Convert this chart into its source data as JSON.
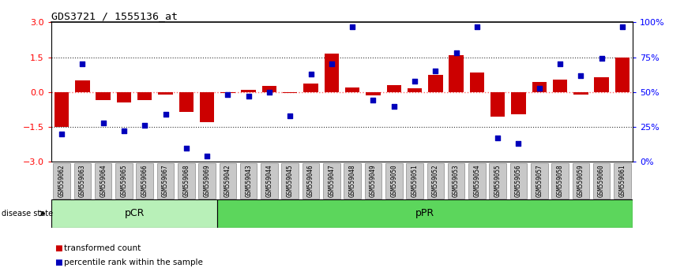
{
  "title": "GDS3721 / 1555136_at",
  "samples": [
    "GSM559062",
    "GSM559063",
    "GSM559064",
    "GSM559065",
    "GSM559066",
    "GSM559067",
    "GSM559068",
    "GSM559069",
    "GSM559042",
    "GSM559043",
    "GSM559044",
    "GSM559045",
    "GSM559046",
    "GSM559047",
    "GSM559048",
    "GSM559049",
    "GSM559050",
    "GSM559051",
    "GSM559052",
    "GSM559053",
    "GSM559054",
    "GSM559055",
    "GSM559056",
    "GSM559057",
    "GSM559058",
    "GSM559059",
    "GSM559060",
    "GSM559061"
  ],
  "transformed_count": [
    -1.5,
    0.5,
    -0.35,
    -0.45,
    -0.35,
    -0.1,
    -0.85,
    -1.3,
    -0.05,
    0.1,
    0.25,
    -0.05,
    0.35,
    1.65,
    0.2,
    -0.15,
    0.3,
    0.15,
    0.75,
    1.6,
    0.85,
    -1.05,
    -0.95,
    0.45,
    0.55,
    -0.1,
    0.65,
    1.5
  ],
  "percentile_rank": [
    20,
    70,
    28,
    22,
    26,
    34,
    10,
    4,
    48,
    47,
    50,
    33,
    63,
    70,
    97,
    44,
    40,
    58,
    65,
    78,
    97,
    17,
    13,
    53,
    70,
    62,
    74,
    97
  ],
  "groups": [
    {
      "label": "pCR",
      "start": 0,
      "end": 8,
      "color": "#b8f0b8"
    },
    {
      "label": "pPR",
      "start": 8,
      "end": 28,
      "color": "#5cd65c"
    }
  ],
  "bar_color": "#CC0000",
  "dot_color": "#0000BB",
  "left_ylim": [
    -3,
    3
  ],
  "right_ylim": [
    0,
    100
  ],
  "left_yticks": [
    -3,
    -1.5,
    0,
    1.5,
    3
  ],
  "right_yticks": [
    0,
    25,
    50,
    75,
    100
  ],
  "right_yticklabels": [
    "0%",
    "25%",
    "50%",
    "75%",
    "100%"
  ],
  "hline_zero_color": "#FF6666",
  "hline_dotted_color": "#333333",
  "background_color": "#ffffff",
  "plot_bg": "#ffffff",
  "tick_label_bg": "#c8c8c8",
  "tick_label_border": "#888888"
}
